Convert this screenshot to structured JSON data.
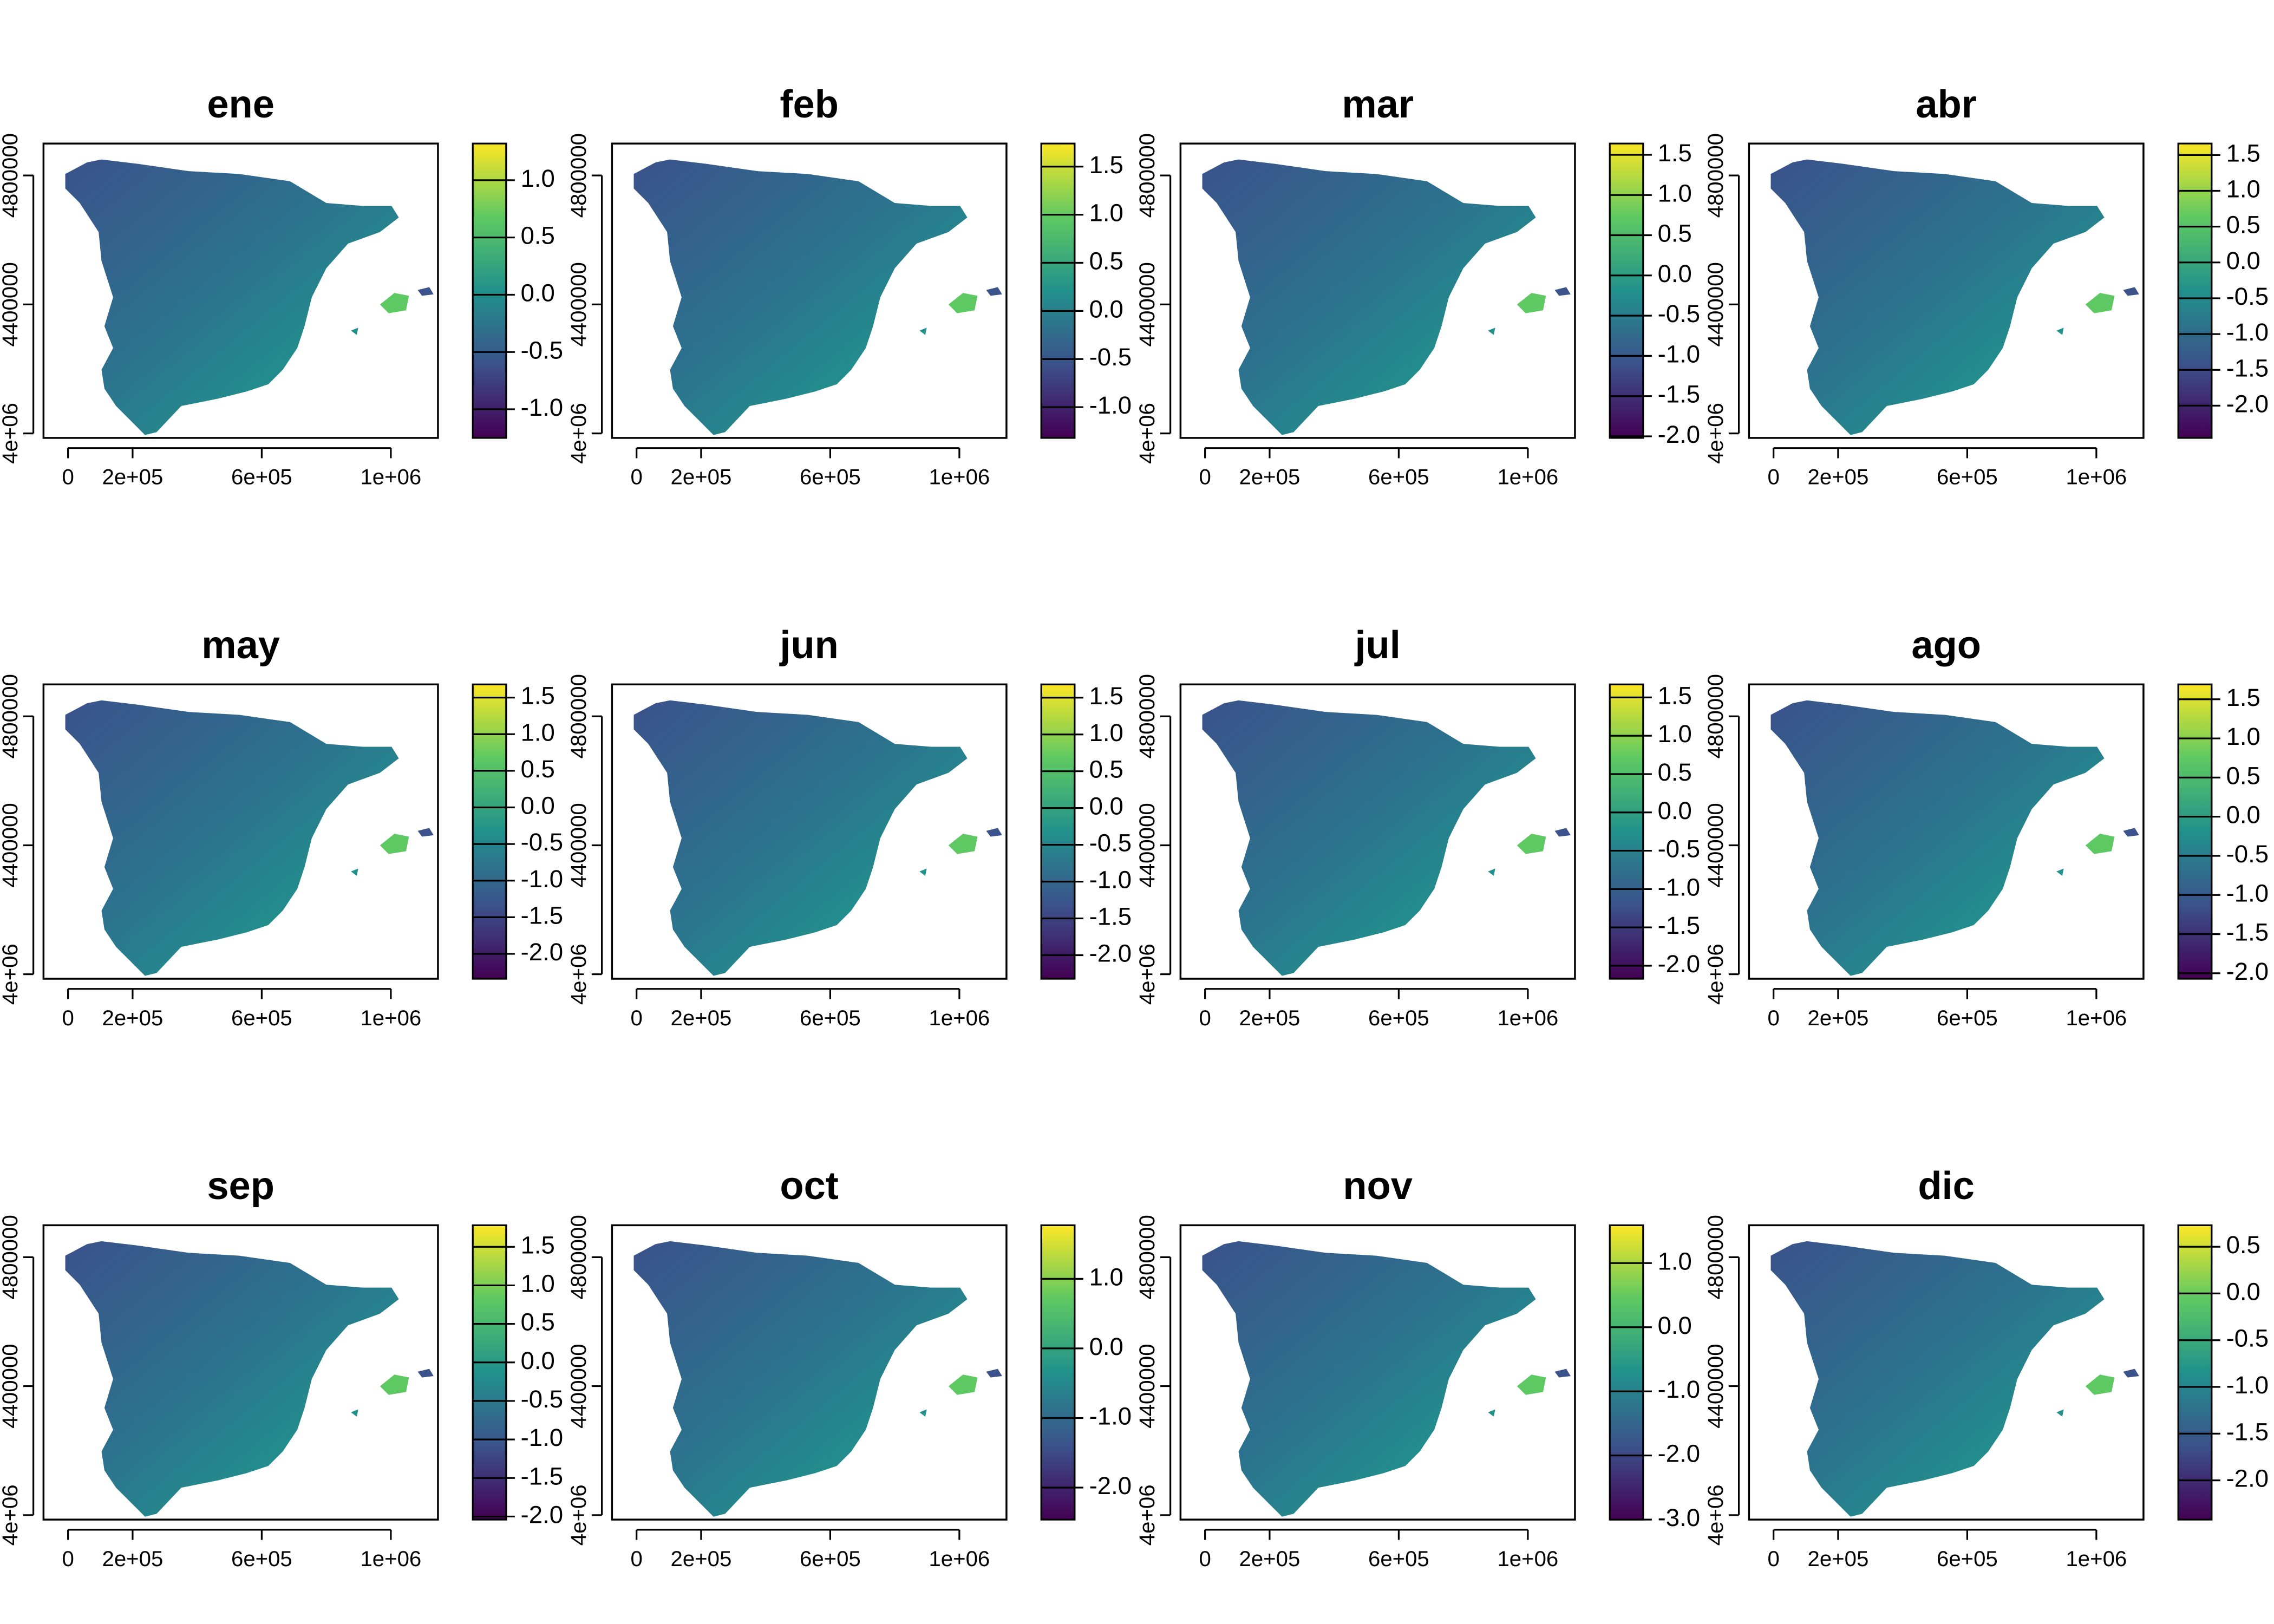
{
  "chart_data": [
    {
      "type": "raster",
      "title": "ene",
      "xlim": [
        -76000,
        1146000
      ],
      "ylim": [
        3986000,
        4899000
      ],
      "xticks": [
        0,
        {
          "value": 200000,
          "label": "2e+05"
        },
        {
          "value": 600000,
          "label": "6e+05"
        },
        {
          "value": 1000000,
          "label": "1e+06"
        }
      ],
      "yticks": [
        {
          "value": 4000000,
          "label": "4e+06"
        },
        4400000,
        4800000
      ],
      "colorbar": {
        "lim": [
          -1.25,
          1.32
        ],
        "colors": [
          "#440154",
          "#3b528b",
          "#21918c",
          "#5ec962",
          "#fde725"
        ],
        "ticks": [
          {
            "value": -1,
            "label": "-1.0"
          },
          -0.5,
          {
            "value": 0,
            "label": "0.0"
          },
          0.5,
          {
            "value": 1,
            "label": "1.0"
          }
        ]
      }
    },
    {
      "type": "raster",
      "title": "feb",
      "xlim": [
        -76000,
        1146000
      ],
      "ylim": [
        3986000,
        4899000
      ],
      "xticks": [
        0,
        {
          "value": 200000,
          "label": "2e+05"
        },
        {
          "value": 600000,
          "label": "6e+05"
        },
        {
          "value": 1000000,
          "label": "1e+06"
        }
      ],
      "yticks": [
        {
          "value": 4000000,
          "label": "4e+06"
        },
        4400000,
        4800000
      ],
      "colorbar": {
        "lim": [
          -1.32,
          1.74
        ],
        "colors": [
          "#440154",
          "#3b528b",
          "#21918c",
          "#5ec962",
          "#fde725"
        ],
        "ticks": [
          {
            "value": -1,
            "label": "-1.0"
          },
          -0.5,
          {
            "value": 0,
            "label": "0.0"
          },
          0.5,
          {
            "value": 1,
            "label": "1.0"
          },
          1.5
        ]
      }
    },
    {
      "type": "raster",
      "title": "mar",
      "xlim": [
        -76000,
        1146000
      ],
      "ylim": [
        3986000,
        4899000
      ],
      "xticks": [
        0,
        {
          "value": 200000,
          "label": "2e+05"
        },
        {
          "value": 600000,
          "label": "6e+05"
        },
        {
          "value": 1000000,
          "label": "1e+06"
        }
      ],
      "yticks": [
        {
          "value": 4000000,
          "label": "4e+06"
        },
        4400000,
        4800000
      ],
      "colorbar": {
        "lim": [
          -2.02,
          1.64
        ],
        "colors": [
          "#440154",
          "#3b528b",
          "#21918c",
          "#5ec962",
          "#fde725"
        ],
        "ticks": [
          {
            "value": -2,
            "label": "-2.0"
          },
          -1.5,
          {
            "value": -1,
            "label": "-1.0"
          },
          -0.5,
          {
            "value": 0,
            "label": "0.0"
          },
          0.5,
          {
            "value": 1,
            "label": "1.0"
          },
          1.5
        ]
      }
    },
    {
      "type": "raster",
      "title": "abr",
      "xlim": [
        -76000,
        1146000
      ],
      "ylim": [
        3986000,
        4899000
      ],
      "xticks": [
        0,
        {
          "value": 200000,
          "label": "2e+05"
        },
        {
          "value": 600000,
          "label": "6e+05"
        },
        {
          "value": 1000000,
          "label": "1e+06"
        }
      ],
      "yticks": [
        {
          "value": 4000000,
          "label": "4e+06"
        },
        4400000,
        4800000
      ],
      "colorbar": {
        "lim": [
          -2.45,
          1.66
        ],
        "colors": [
          "#440154",
          "#3b528b",
          "#21918c",
          "#5ec962",
          "#fde725"
        ],
        "ticks": [
          {
            "value": -2,
            "label": "-2.0"
          },
          -1.5,
          {
            "value": -1,
            "label": "-1.0"
          },
          -0.5,
          {
            "value": 0,
            "label": "0.0"
          },
          0.5,
          {
            "value": 1,
            "label": "1.0"
          },
          1.5
        ]
      }
    },
    {
      "type": "raster",
      "title": "may",
      "xlim": [
        -76000,
        1146000
      ],
      "ylim": [
        3986000,
        4899000
      ],
      "xticks": [
        0,
        {
          "value": 200000,
          "label": "2e+05"
        },
        {
          "value": 600000,
          "label": "6e+05"
        },
        {
          "value": 1000000,
          "label": "1e+06"
        }
      ],
      "yticks": [
        {
          "value": 4000000,
          "label": "4e+06"
        },
        4400000,
        4800000
      ],
      "colorbar": {
        "lim": [
          -2.34,
          1.68
        ],
        "colors": [
          "#440154",
          "#3b528b",
          "#21918c",
          "#5ec962",
          "#fde725"
        ],
        "ticks": [
          {
            "value": -2,
            "label": "-2.0"
          },
          -1.5,
          {
            "value": -1,
            "label": "-1.0"
          },
          -0.5,
          {
            "value": 0,
            "label": "0.0"
          },
          0.5,
          {
            "value": 1,
            "label": "1.0"
          },
          1.5
        ]
      }
    },
    {
      "type": "raster",
      "title": "jun",
      "xlim": [
        -76000,
        1146000
      ],
      "ylim": [
        3986000,
        4899000
      ],
      "xticks": [
        0,
        {
          "value": 200000,
          "label": "2e+05"
        },
        {
          "value": 600000,
          "label": "6e+05"
        },
        {
          "value": 1000000,
          "label": "1e+06"
        }
      ],
      "yticks": [
        {
          "value": 4000000,
          "label": "4e+06"
        },
        4400000,
        4800000
      ],
      "colorbar": {
        "lim": [
          -2.32,
          1.68
        ],
        "colors": [
          "#440154",
          "#3b528b",
          "#21918c",
          "#5ec962",
          "#fde725"
        ],
        "ticks": [
          {
            "value": -2,
            "label": "-2.0"
          },
          -1.5,
          {
            "value": -1,
            "label": "-1.0"
          },
          -0.5,
          {
            "value": 0,
            "label": "0.0"
          },
          0.5,
          {
            "value": 1,
            "label": "1.0"
          },
          1.5
        ]
      }
    },
    {
      "type": "raster",
      "title": "jul",
      "xlim": [
        -76000,
        1146000
      ],
      "ylim": [
        3986000,
        4899000
      ],
      "xticks": [
        0,
        {
          "value": 200000,
          "label": "2e+05"
        },
        {
          "value": 600000,
          "label": "6e+05"
        },
        {
          "value": 1000000,
          "label": "1e+06"
        }
      ],
      "yticks": [
        {
          "value": 4000000,
          "label": "4e+06"
        },
        4400000,
        4800000
      ],
      "colorbar": {
        "lim": [
          -2.17,
          1.67
        ],
        "colors": [
          "#440154",
          "#3b528b",
          "#21918c",
          "#5ec962",
          "#fde725"
        ],
        "ticks": [
          {
            "value": -2,
            "label": "-2.0"
          },
          -1.5,
          {
            "value": -1,
            "label": "-1.0"
          },
          -0.5,
          {
            "value": 0,
            "label": "0.0"
          },
          0.5,
          {
            "value": 1,
            "label": "1.0"
          },
          1.5
        ]
      }
    },
    {
      "type": "raster",
      "title": "ago",
      "xlim": [
        -76000,
        1146000
      ],
      "ylim": [
        3986000,
        4899000
      ],
      "xticks": [
        0,
        {
          "value": 200000,
          "label": "2e+05"
        },
        {
          "value": 600000,
          "label": "6e+05"
        },
        {
          "value": 1000000,
          "label": "1e+06"
        }
      ],
      "yticks": [
        {
          "value": 4000000,
          "label": "4e+06"
        },
        4400000,
        4800000
      ],
      "colorbar": {
        "lim": [
          -2.07,
          1.69
        ],
        "colors": [
          "#440154",
          "#3b528b",
          "#21918c",
          "#5ec962",
          "#fde725"
        ],
        "ticks": [
          {
            "value": -2,
            "label": "-2.0"
          },
          -1.5,
          {
            "value": -1,
            "label": "-1.0"
          },
          -0.5,
          {
            "value": 0,
            "label": "0.0"
          },
          0.5,
          {
            "value": 1,
            "label": "1.0"
          },
          1.5
        ]
      }
    },
    {
      "type": "raster",
      "title": "sep",
      "xlim": [
        -76000,
        1146000
      ],
      "ylim": [
        3986000,
        4899000
      ],
      "xticks": [
        0,
        {
          "value": 200000,
          "label": "2e+05"
        },
        {
          "value": 600000,
          "label": "6e+05"
        },
        {
          "value": 1000000,
          "label": "1e+06"
        }
      ],
      "yticks": [
        {
          "value": 4000000,
          "label": "4e+06"
        },
        4400000,
        4800000
      ],
      "colorbar": {
        "lim": [
          -2.04,
          1.78
        ],
        "colors": [
          "#440154",
          "#3b528b",
          "#21918c",
          "#5ec962",
          "#fde725"
        ],
        "ticks": [
          {
            "value": -2,
            "label": "-2.0"
          },
          -1.5,
          {
            "value": -1,
            "label": "-1.0"
          },
          -0.5,
          {
            "value": 0,
            "label": "0.0"
          },
          0.5,
          {
            "value": 1,
            "label": "1.0"
          },
          1.5
        ]
      }
    },
    {
      "type": "raster",
      "title": "oct",
      "xlim": [
        -76000,
        1146000
      ],
      "ylim": [
        3986000,
        4899000
      ],
      "xticks": [
        0,
        {
          "value": 200000,
          "label": "2e+05"
        },
        {
          "value": 600000,
          "label": "6e+05"
        },
        {
          "value": 1000000,
          "label": "1e+06"
        }
      ],
      "yticks": [
        {
          "value": 4000000,
          "label": "4e+06"
        },
        4400000,
        4800000
      ],
      "colorbar": {
        "lim": [
          -2.46,
          1.77
        ],
        "colors": [
          "#440154",
          "#3b528b",
          "#21918c",
          "#5ec962",
          "#fde725"
        ],
        "ticks": [
          {
            "value": -2,
            "label": "-2.0"
          },
          {
            "value": -1,
            "label": "-1.0"
          },
          {
            "value": 0,
            "label": "0.0"
          },
          {
            "value": 1,
            "label": "1.0"
          }
        ]
      }
    },
    {
      "type": "raster",
      "title": "nov",
      "xlim": [
        -76000,
        1146000
      ],
      "ylim": [
        3986000,
        4899000
      ],
      "xticks": [
        0,
        {
          "value": 200000,
          "label": "2e+05"
        },
        {
          "value": 600000,
          "label": "6e+05"
        },
        {
          "value": 1000000,
          "label": "1e+06"
        }
      ],
      "yticks": [
        {
          "value": 4000000,
          "label": "4e+06"
        },
        4400000,
        4800000
      ],
      "colorbar": {
        "lim": [
          -3.0,
          1.59
        ],
        "colors": [
          "#440154",
          "#3b528b",
          "#21918c",
          "#5ec962",
          "#fde725"
        ],
        "ticks": [
          {
            "value": -3,
            "label": "-3.0"
          },
          {
            "value": -2,
            "label": "-2.0"
          },
          {
            "value": -1,
            "label": "-1.0"
          },
          {
            "value": 0,
            "label": "0.0"
          },
          {
            "value": 1,
            "label": "1.0"
          }
        ]
      }
    },
    {
      "type": "raster",
      "title": "dic",
      "xlim": [
        -76000,
        1146000
      ],
      "ylim": [
        3986000,
        4899000
      ],
      "xticks": [
        0,
        {
          "value": 200000,
          "label": "2e+05"
        },
        {
          "value": 600000,
          "label": "6e+05"
        },
        {
          "value": 1000000,
          "label": "1e+06"
        }
      ],
      "yticks": [
        {
          "value": 4000000,
          "label": "4e+06"
        },
        4400000,
        4800000
      ],
      "colorbar": {
        "lim": [
          -2.42,
          0.73
        ],
        "colors": [
          "#440154",
          "#3b528b",
          "#21918c",
          "#5ec962",
          "#fde725"
        ],
        "ticks": [
          {
            "value": -2,
            "label": "-2.0"
          },
          -1.5,
          {
            "value": -1,
            "label": "-1.0"
          },
          -0.5,
          {
            "value": 0,
            "label": "0.0"
          },
          0.5
        ]
      }
    }
  ]
}
